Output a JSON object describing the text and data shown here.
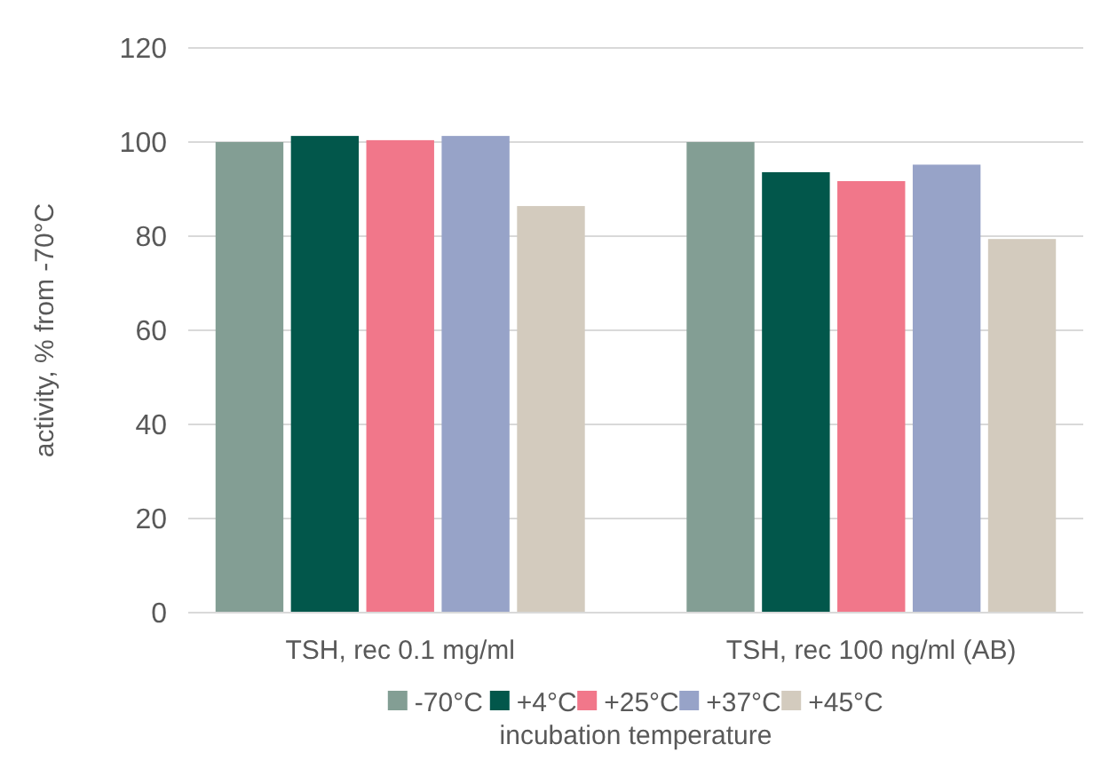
{
  "chart_data": {
    "type": "bar",
    "ylabel": "activity, % from -70°C",
    "legend_title": "incubation temperature",
    "categories": [
      "TSH, rec 0.1 mg/ml",
      "TSH, rec 100 ng/ml (AB)"
    ],
    "series": [
      {
        "name": "-70°C",
        "color": "#839e94",
        "values": [
          100,
          100
        ]
      },
      {
        "name": "+4°C",
        "color": "#02574b",
        "values": [
          101.3,
          93.6
        ]
      },
      {
        "name": "+25°C",
        "color": "#f1778a",
        "values": [
          100.4,
          91.7
        ]
      },
      {
        "name": "+37°C",
        "color": "#97a3c8",
        "values": [
          101.3,
          95.2
        ]
      },
      {
        "name": "+45°C",
        "color": "#d3cbbe",
        "values": [
          86.4,
          79.4
        ]
      }
    ],
    "ylim": [
      0,
      120
    ],
    "yticks": [
      0,
      20,
      40,
      60,
      80,
      100,
      120
    ],
    "grid": "y",
    "legend": "bottom"
  }
}
